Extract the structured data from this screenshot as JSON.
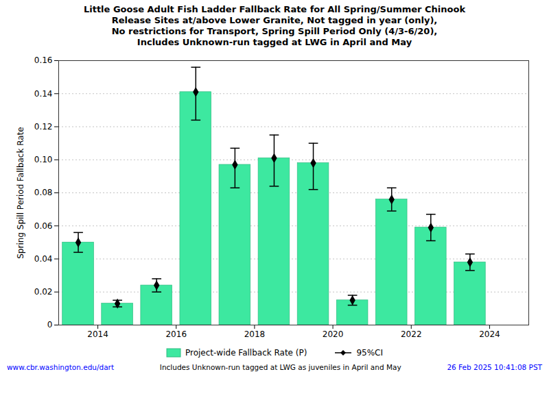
{
  "chart_data": {
    "type": "bar",
    "title": "Little Goose Adult Fish Ladder Fallback Rate for All Spring/Summer Chinook\nRelease Sites at/above Lower Granite, Not tagged in year (only),\nNo restrictions for Transport, Spring Spill Period Only (4/3-6/20),\nIncludes Unknown-run tagged at LWG in April and May",
    "ylabel": "Spring Spill Period Fallback Rate",
    "x": [
      2013.5,
      2014.5,
      2015.5,
      2016.5,
      2017.5,
      2018.5,
      2019.5,
      2020.5,
      2021.5,
      2022.5,
      2023.5
    ],
    "series": [
      {
        "name": "Project-wide Fallback Rate (P)",
        "type": "bar",
        "color": "#3de8a0",
        "values": [
          0.05,
          0.013,
          0.024,
          0.141,
          0.097,
          0.101,
          0.098,
          0.015,
          0.076,
          0.059,
          0.038
        ],
        "error_bars": {
          "name": "95%CI",
          "marker": "diamond",
          "color": "black",
          "lower": [
            0.044,
            0.011,
            0.02,
            0.124,
            0.083,
            0.084,
            0.082,
            0.012,
            0.069,
            0.051,
            0.033
          ],
          "upper": [
            0.056,
            0.015,
            0.028,
            0.156,
            0.107,
            0.115,
            0.11,
            0.018,
            0.083,
            0.067,
            0.043
          ]
        }
      }
    ],
    "xlim": [
      2013.0,
      2025.0
    ],
    "xticks": [
      2014,
      2016,
      2018,
      2020,
      2022,
      2024
    ],
    "ylim": [
      0,
      0.16
    ],
    "yticks": [
      0,
      0.02,
      0.04,
      0.06,
      0.08,
      {
        "value": 0.1,
        "label": "0.10"
      },
      0.12,
      0.14,
      0.16
    ],
    "grid": true,
    "legend": "bottom",
    "annotations": [
      {
        "text": "www.cbr.washington.edu/dart",
        "color": "blue"
      },
      {
        "text": "Includes Unknown-run tagged at LWG as juveniles in April and May",
        "color": "black"
      },
      {
        "text": "26 Feb 2025 10:41:08 PST",
        "color": "blue"
      }
    ]
  }
}
